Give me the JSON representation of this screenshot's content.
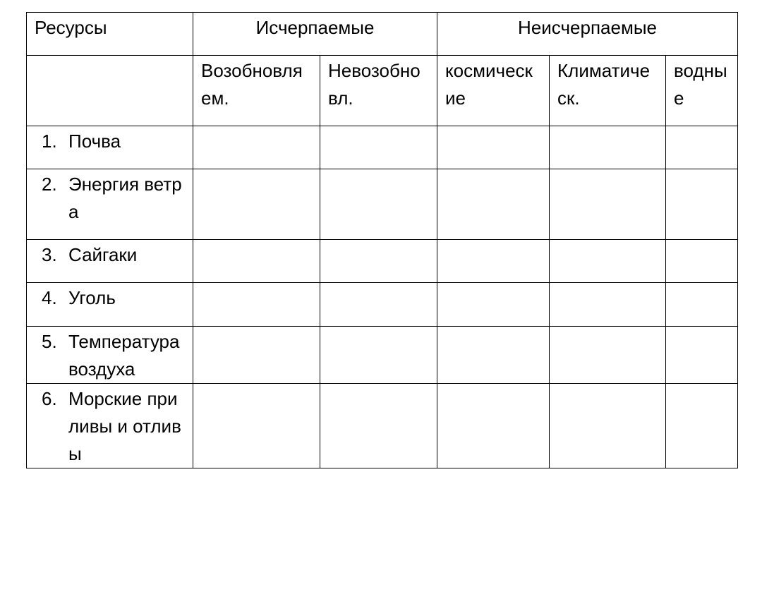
{
  "header": {
    "resources": "Ресурсы",
    "exhaustible": "Исчерпаемые",
    "inexhaustible": "Неисчерпаемые",
    "sub": [
      "Возобновляем.",
      "Невозобновл.",
      "космические",
      "Климатическ.",
      "водные"
    ]
  },
  "rows": [
    {
      "num": "1.",
      "label": "Почва"
    },
    {
      "num": "2.",
      "label": "Энергия ветра"
    },
    {
      "num": "3.",
      "label": "Сайгаки"
    },
    {
      "num": "4.",
      "label": "Уголь"
    },
    {
      "num": "5.",
      "label": "Температура воздуха"
    },
    {
      "num": "6.",
      "label": "Морские приливы и отливы"
    }
  ]
}
